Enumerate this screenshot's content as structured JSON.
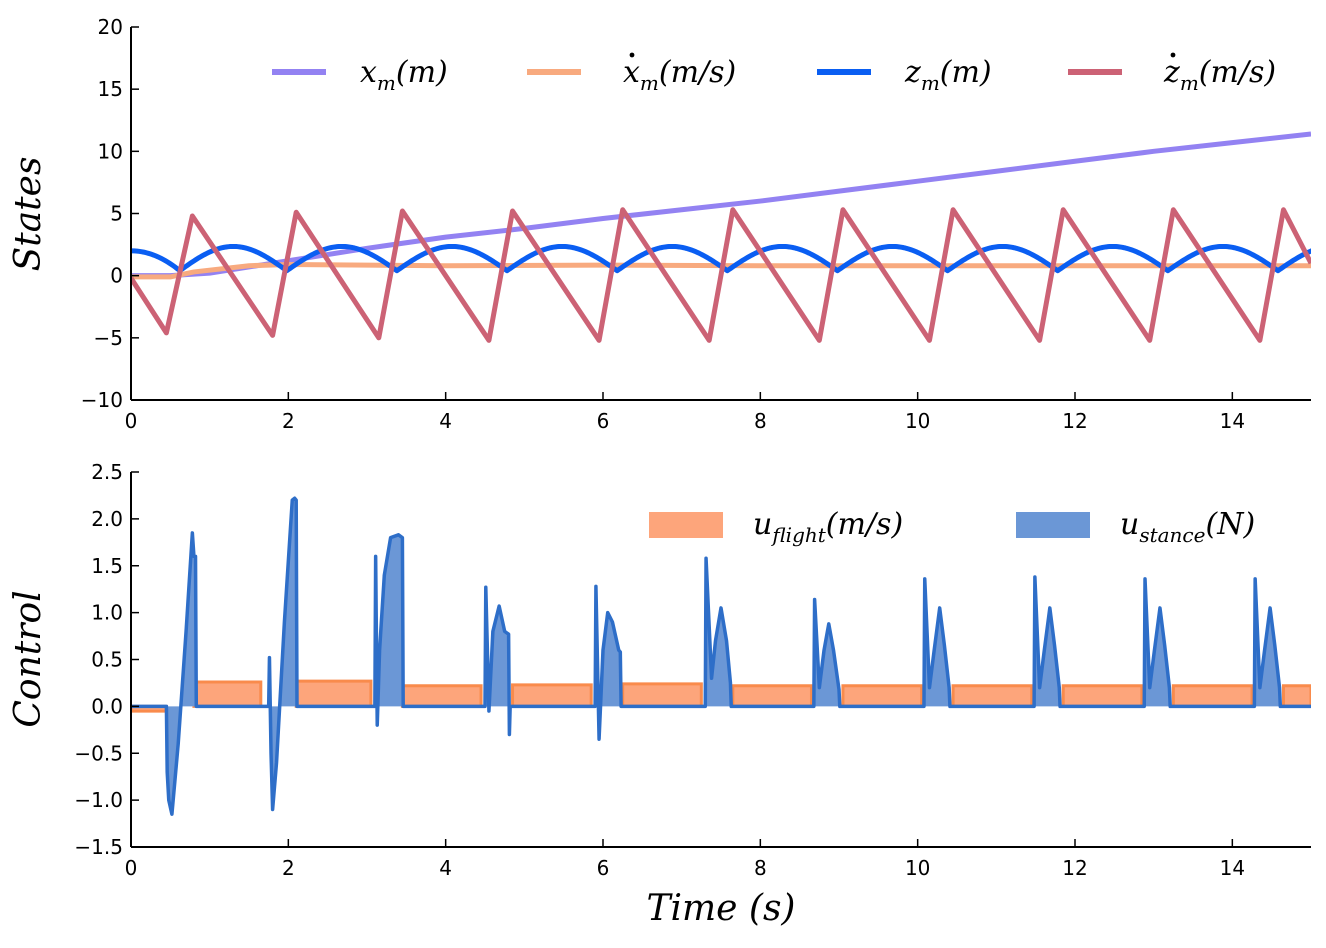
{
  "chart_data": [
    {
      "type": "line",
      "ylabel": "States",
      "xlim": [
        0,
        15
      ],
      "ylim": [
        -10,
        20
      ],
      "xticks": [
        0,
        2,
        4,
        6,
        8,
        10,
        12,
        14
      ],
      "yticks": [
        -10,
        -5,
        0,
        5,
        10,
        15,
        20
      ],
      "xtick_labels": [
        "0",
        "2",
        "4",
        "6",
        "8",
        "10",
        "12",
        "14"
      ],
      "ytick_labels": [
        "−10",
        "−5",
        "0",
        "5",
        "10",
        "15",
        "20"
      ],
      "legend_position": "top",
      "series": [
        {
          "name": "x_m(m)",
          "base": "x",
          "sub": "m",
          "unit": "(m)",
          "dot": false,
          "color": "#9382f2",
          "x": [
            0,
            0.5,
            1,
            2,
            3,
            4,
            5,
            6,
            7,
            8,
            9,
            10,
            11,
            12,
            13,
            14,
            15
          ],
          "values": [
            0,
            0,
            0.2,
            1.2,
            2.2,
            3.1,
            3.8,
            4.6,
            5.3,
            6.0,
            6.8,
            7.6,
            8.4,
            9.2,
            10.0,
            10.7,
            11.4
          ]
        },
        {
          "name": "xdot_m(m/s)",
          "base": "x",
          "sub": "m",
          "unit": "(m/s)",
          "dot": true,
          "color": "#f8aa7f",
          "x": [
            0,
            0.5,
            0.8,
            1.5,
            2,
            4,
            6,
            8,
            10,
            12,
            15
          ],
          "values": [
            -0.1,
            -0.1,
            0.3,
            0.8,
            0.9,
            0.8,
            0.85,
            0.8,
            0.8,
            0.8,
            0.8
          ]
        },
        {
          "name": "z_m(m)",
          "base": "z",
          "sub": "m",
          "unit": "(m)",
          "dot": false,
          "color": "#0a5ef2",
          "touchdowns": [
            0.62,
            1.98,
            3.38,
            4.78,
            6.18,
            7.58,
            8.98,
            10.38,
            11.78,
            13.18,
            14.58
          ],
          "z_min": 0.4,
          "z_max": 2.35,
          "z_start": 2.0
        },
        {
          "name": "zdot_m(m/s)",
          "base": "z",
          "sub": "m",
          "unit": "(m/s)",
          "dot": true,
          "color": "#cc6275",
          "peaks": [
            [
              0.45,
              -4.6
            ],
            [
              0.78,
              4.8
            ],
            [
              1.8,
              -4.8
            ],
            [
              2.1,
              5.1
            ],
            [
              3.15,
              -5.0
            ],
            [
              3.45,
              5.2
            ],
            [
              4.55,
              -5.2
            ],
            [
              4.85,
              5.2
            ],
            [
              5.95,
              -5.2
            ],
            [
              6.25,
              5.3
            ],
            [
              7.35,
              -5.2
            ],
            [
              7.65,
              5.3
            ],
            [
              8.75,
              -5.2
            ],
            [
              9.05,
              5.3
            ],
            [
              10.15,
              -5.2
            ],
            [
              10.45,
              5.3
            ],
            [
              11.55,
              -5.2
            ],
            [
              11.85,
              5.3
            ],
            [
              12.95,
              -5.2
            ],
            [
              13.25,
              5.3
            ],
            [
              14.35,
              -5.2
            ],
            [
              14.65,
              5.3
            ]
          ],
          "start": [
            0,
            -0.2
          ],
          "end": [
            15,
            1.0
          ]
        }
      ]
    },
    {
      "type": "area",
      "ylabel": "Control",
      "xlabel": "Time (s)",
      "xlim": [
        0,
        15
      ],
      "ylim": [
        -1.5,
        2.5
      ],
      "xticks": [
        0,
        2,
        4,
        6,
        8,
        10,
        12,
        14
      ],
      "yticks": [
        -1.5,
        -1.0,
        -0.5,
        0.0,
        0.5,
        1.0,
        1.5,
        2.0,
        2.5
      ],
      "xtick_labels": [
        "0",
        "2",
        "4",
        "6",
        "8",
        "10",
        "12",
        "14"
      ],
      "ytick_labels": [
        "−1.5",
        "−1.0",
        "−0.5",
        "0.0",
        "0.5",
        "1.0",
        "1.5",
        "2.0",
        "2.5"
      ],
      "legend_position": "top-right",
      "series": [
        {
          "name": "u_flight(m/s)",
          "base": "u",
          "sub": "flight",
          "unit": "(m/s)",
          "color": "#f98b4c",
          "fill": "#fda57b",
          "segments": [
            {
              "start": 0.0,
              "end": 0.45,
              "level": -0.05
            },
            {
              "start": 0.8,
              "end": 1.65,
              "level": 0.26
            },
            {
              "start": 2.1,
              "end": 3.05,
              "level": 0.27
            },
            {
              "start": 3.45,
              "end": 4.45,
              "level": 0.22
            },
            {
              "start": 4.85,
              "end": 5.85,
              "level": 0.23
            },
            {
              "start": 6.25,
              "end": 7.25,
              "level": 0.24
            },
            {
              "start": 7.65,
              "end": 8.65,
              "level": 0.22
            },
            {
              "start": 9.05,
              "end": 10.05,
              "level": 0.22
            },
            {
              "start": 10.45,
              "end": 11.45,
              "level": 0.22
            },
            {
              "start": 11.85,
              "end": 12.85,
              "level": 0.22
            },
            {
              "start": 13.25,
              "end": 14.25,
              "level": 0.22
            },
            {
              "start": 14.65,
              "end": 15.0,
              "level": 0.22
            }
          ]
        },
        {
          "name": "u_stance(N)",
          "base": "u",
          "sub": "stance",
          "unit": "(N)",
          "color": "#2e6ec8",
          "fill": "#6b97d6",
          "x": [
            0,
            0.45,
            0.46,
            0.48,
            0.52,
            0.6,
            0.7,
            0.78,
            0.8,
            0.82,
            0.83,
            1.75,
            1.76,
            1.78,
            1.8,
            1.85,
            1.95,
            2.05,
            2.08,
            2.1,
            2.11,
            3.1,
            3.11,
            3.13,
            3.16,
            3.22,
            3.3,
            3.4,
            3.45,
            3.46,
            4.5,
            4.51,
            4.55,
            4.6,
            4.68,
            4.75,
            4.8,
            4.81,
            4.82,
            5.9,
            5.91,
            5.95,
            6.0,
            6.06,
            6.12,
            6.2,
            6.22,
            6.23,
            7.3,
            7.31,
            7.38,
            7.43,
            7.5,
            7.57,
            7.62,
            7.63,
            8.68,
            8.69,
            8.75,
            8.81,
            8.87,
            8.93,
            9.0,
            9.01,
            10.08,
            10.09,
            10.15,
            10.21,
            10.28,
            10.34,
            10.4,
            10.41,
            11.48,
            11.49,
            11.55,
            11.61,
            11.68,
            11.74,
            11.8,
            11.81,
            12.88,
            12.89,
            12.95,
            13.01,
            13.08,
            13.14,
            13.2,
            13.21,
            14.28,
            14.29,
            14.35,
            14.41,
            14.48,
            14.54,
            14.6,
            14.61,
            15.0
          ],
          "values": [
            0,
            0,
            -0.7,
            -1.0,
            -1.15,
            -0.4,
            0.8,
            1.85,
            1.6,
            1.6,
            0,
            0,
            0.52,
            -0.5,
            -1.1,
            -0.6,
            0.9,
            2.2,
            2.22,
            2.2,
            0,
            0,
            1.6,
            -0.2,
            0.6,
            1.4,
            1.8,
            1.83,
            1.8,
            0,
            0,
            1.27,
            -0.05,
            0.8,
            1.07,
            0.8,
            0.77,
            -0.3,
            0,
            0,
            1.28,
            -0.35,
            0.6,
            1.0,
            0.9,
            0.6,
            0.58,
            0,
            0,
            1.58,
            0.3,
            0.7,
            1.05,
            0.7,
            0.25,
            0,
            0,
            1.14,
            0.2,
            0.6,
            0.88,
            0.6,
            0.18,
            0,
            0,
            1.36,
            0.2,
            0.6,
            1.05,
            0.65,
            0.2,
            0,
            0,
            1.38,
            0.2,
            0.6,
            1.05,
            0.65,
            0.2,
            0,
            0,
            1.36,
            0.2,
            0.6,
            1.05,
            0.65,
            0.2,
            0,
            0,
            1.36,
            0.2,
            0.6,
            1.05,
            0.65,
            0.2,
            0,
            0
          ]
        }
      ]
    }
  ]
}
